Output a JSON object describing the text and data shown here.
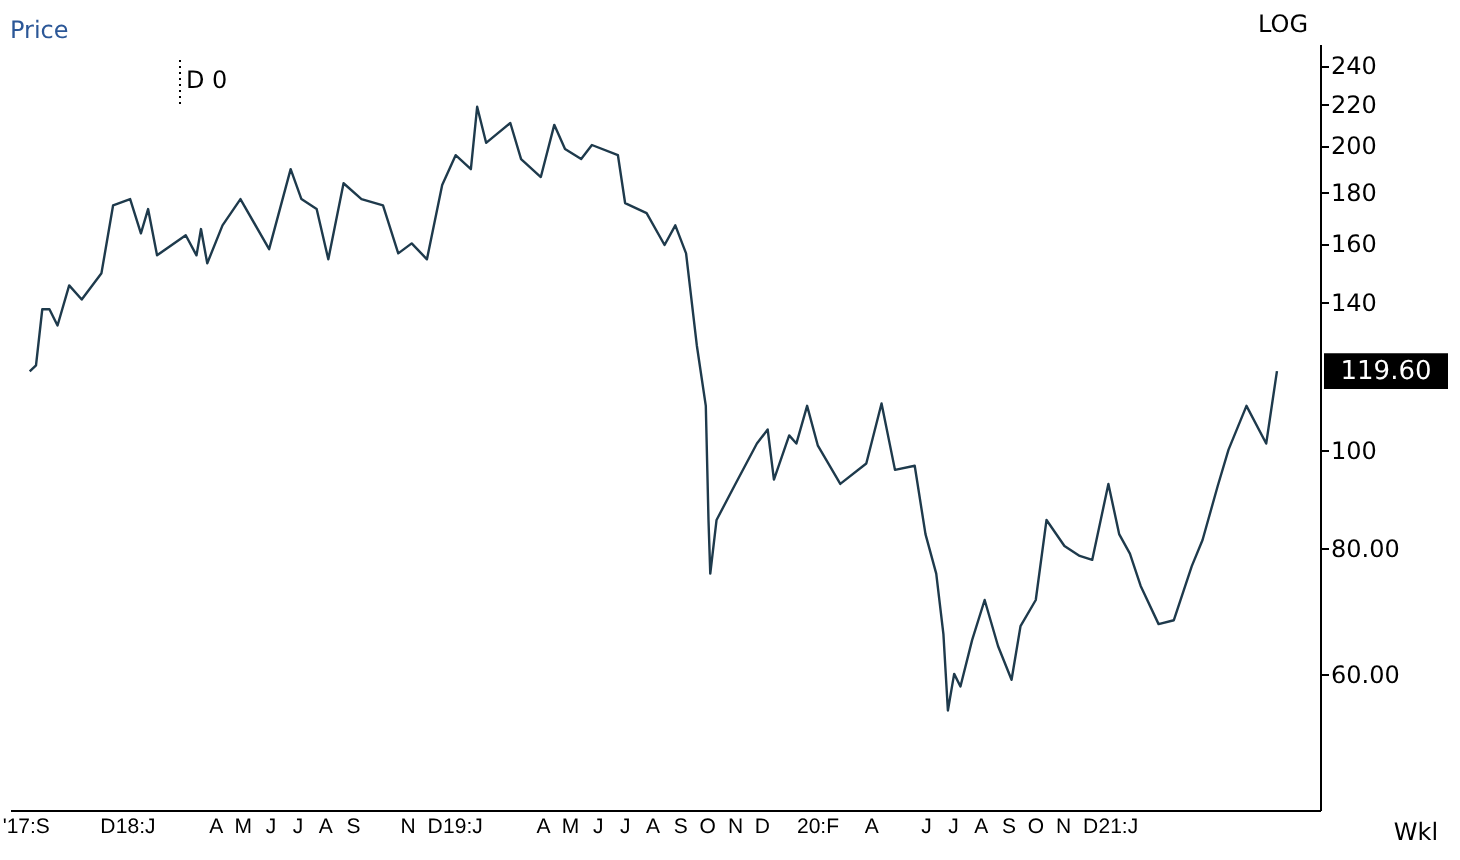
{
  "chart_data": {
    "type": "line",
    "ylabel": "Price",
    "log": true,
    "grid": false,
    "marker": "none",
    "line_style": "solid",
    "annotations": [
      "D 0",
      "LOG",
      "119.60",
      "Wkl"
    ],
    "x": [
      "2017-09-06",
      "2017-09-13",
      "2017-09-20",
      "2017-09-28",
      "2017-10-07",
      "2017-10-20",
      "2017-11-03",
      "2017-11-25",
      "2017-12-08",
      "2017-12-27",
      "2018-01-08",
      "2018-01-16",
      "2018-01-26",
      "2018-02-27",
      "2018-03-11",
      "2018-03-16",
      "2018-03-23",
      "2018-04-09",
      "2018-04-29",
      "2018-05-31",
      "2018-06-24",
      "2018-07-06",
      "2018-07-23",
      "2018-08-05",
      "2018-08-22",
      "2018-09-11",
      "2018-10-05",
      "2018-10-22",
      "2018-11-06",
      "2018-11-23",
      "2018-12-10",
      "2018-12-25",
      "2019-01-11",
      "2019-01-18",
      "2019-01-28",
      "2019-02-24",
      "2019-03-08",
      "2019-03-30",
      "2019-04-14",
      "2019-04-26",
      "2019-05-14",
      "2019-05-26",
      "2019-06-24",
      "2019-07-02",
      "2019-07-26",
      "2019-08-15",
      "2019-08-27",
      "2019-09-08",
      "2019-09-20",
      "2019-09-30",
      "2019-10-03",
      "2019-10-05",
      "2019-10-12",
      "2019-11-01",
      "2019-11-26",
      "2019-12-08",
      "2019-12-15",
      "2020-01-01",
      "2020-01-09",
      "2020-01-21",
      "2020-02-02",
      "2020-02-27",
      "2020-03-27",
      "2020-04-13",
      "2020-04-28",
      "2020-05-20",
      "2020-06-01",
      "2020-06-13",
      "2020-06-21",
      "2020-06-26",
      "2020-07-03",
      "2020-07-10",
      "2020-07-23",
      "2020-08-06",
      "2020-08-21",
      "2020-09-05",
      "2020-09-15",
      "2020-10-02",
      "2020-10-14",
      "2020-11-03",
      "2020-11-20",
      "2020-12-04",
      "2020-12-22",
      "2021-01-03",
      "2021-01-15",
      "2021-01-27",
      "2021-02-16",
      "2021-03-05",
      "2021-03-25",
      "2021-04-06",
      "2021-04-23",
      "2021-05-05",
      "2021-05-25",
      "2021-06-16",
      "2021-06-28"
    ],
    "series": [
      {
        "color": "#1e3a4c",
        "values": [
          119.5,
          121.2,
          137.7,
          137.7,
          132.7,
          145.4,
          140.8,
          149.5,
          174.5,
          177.0,
          163.7,
          173.0,
          155.7,
          163.0,
          155.7,
          165.3,
          152.9,
          166.7,
          177.0,
          157.9,
          189.5,
          177.0,
          173.0,
          154.3,
          183.5,
          177.0,
          174.5,
          156.4,
          160.0,
          154.3,
          182.8,
          195.6,
          189.5,
          218.4,
          201.2,
          210.5,
          193.9,
          186.1,
          209.6,
          198.4,
          193.9,
          200.2,
          195.6,
          175.4,
          171.4,
          159.4,
          166.7,
          156.4,
          126.8,
          110.5,
          85.2,
          75.4,
          85.2,
          92.1,
          101.4,
          104.7,
          93.4,
          103.3,
          101.4,
          110.5,
          100.9,
          92.5,
          96.9,
          111.1,
          95.5,
          96.4,
          82.5,
          75.4,
          65.7,
          55.2,
          60.0,
          58.3,
          64.8,
          71.0,
          63.9,
          59.2,
          66.9,
          71.0,
          85.2,
          80.3,
          78.5,
          77.8,
          92.5,
          82.5,
          78.9,
          73.3,
          67.2,
          67.8,
          76.7,
          81.4,
          92.1,
          100.0,
          110.5,
          101.4,
          119.6
        ]
      }
    ],
    "xlim": [
      "2017-08-15",
      "2021-08-15"
    ],
    "xticks": [
      {
        "value": "2017-09",
        "label": "'17:S"
      },
      {
        "value": "2017-12",
        "label": "D"
      },
      {
        "value": "2018-01",
        "label": "18:J"
      },
      {
        "value": "2018-04",
        "label": "A"
      },
      {
        "value": "2018-05",
        "label": "M"
      },
      {
        "value": "2018-06",
        "label": "J"
      },
      {
        "value": "2018-07",
        "label": "J"
      },
      {
        "value": "2018-08",
        "label": "A"
      },
      {
        "value": "2018-09",
        "label": "S"
      },
      {
        "value": "2018-11",
        "label": "N"
      },
      {
        "value": "2018-12",
        "label": "D"
      },
      {
        "value": "2019-01",
        "label": "19:J"
      },
      {
        "value": "2019-04",
        "label": "A"
      },
      {
        "value": "2019-05",
        "label": "M"
      },
      {
        "value": "2019-06",
        "label": "J"
      },
      {
        "value": "2019-07",
        "label": "J"
      },
      {
        "value": "2019-08",
        "label": "A"
      },
      {
        "value": "2019-09",
        "label": "S"
      },
      {
        "value": "2019-10",
        "label": "O"
      },
      {
        "value": "2019-11",
        "label": "N"
      },
      {
        "value": "2019-12",
        "label": "D"
      },
      {
        "value": "2020-02",
        "label": "20:F"
      },
      {
        "value": "2020-04",
        "label": "A"
      },
      {
        "value": "2020-06",
        "label": "J"
      },
      {
        "value": "2020-07",
        "label": "J"
      },
      {
        "value": "2020-08",
        "label": "A"
      },
      {
        "value": "2020-09",
        "label": "S"
      },
      {
        "value": "2020-10",
        "label": "O"
      },
      {
        "value": "2020-11",
        "label": "N"
      },
      {
        "value": "2020-12",
        "label": "D"
      },
      {
        "value": "2021-01",
        "label": "21:J"
      }
    ],
    "ylim": [
      44,
      252
    ],
    "yticks": [
      {
        "value": 60,
        "label": "60.00"
      },
      {
        "value": 80,
        "label": "80.00"
      },
      100,
      140,
      160,
      180,
      200,
      220,
      240
    ]
  }
}
